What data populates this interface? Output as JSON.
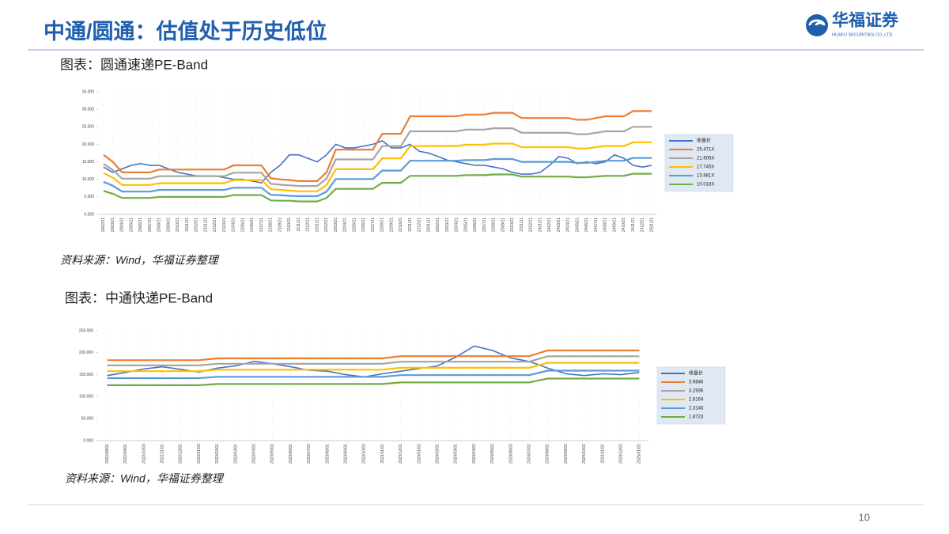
{
  "slide": {
    "title": "中通/圆通：估值处于历史低位",
    "logo_name": "华福证券",
    "logo_subtitle": "HUAFU SECURITIES CO.,LTD",
    "page_number": "10"
  },
  "chart_data": [
    {
      "type": "line",
      "title": "图表：圆通速递PE-Band",
      "source": "资料来源：Wind，华福证券整理",
      "categories": [
        "2002/21",
        "2003/21",
        "2004/21",
        "2005/21",
        "2006/21",
        "2007/21",
        "2008/21",
        "2009/21",
        "2010/21",
        "2011/21",
        "2012/21",
        "2101/21",
        "2102/21",
        "2103/21",
        "2104/21",
        "2105/21",
        "2106/21",
        "2107/21",
        "2108/21",
        "2109/21",
        "2110/21",
        "2111/21",
        "2112/21",
        "2201/21",
        "2202/21",
        "2203/21",
        "2204/21",
        "2205/21",
        "2206/21",
        "2207/21",
        "2208/21",
        "2209/21",
        "2210/21",
        "2211/21",
        "2212/21",
        "2301/21",
        "2302/21",
        "2303/21",
        "2304/21",
        "2305/21",
        "2306/21",
        "2307/21",
        "2308/21",
        "2309/21",
        "2310/21",
        "2311/21",
        "2312/21",
        "2401/21",
        "2402/21",
        "2403/21",
        "2404/21",
        "2405/21",
        "2406/21",
        "2407/21",
        "2408/21",
        "2409/21",
        "2410/21",
        "2411/21",
        "2412/21",
        "2501/21"
      ],
      "ylim": [
        0,
        35
      ],
      "yticks": [
        {
          "value": 0,
          "label": "0.000"
        },
        {
          "value": 5,
          "label": "5.000"
        },
        {
          "value": 10,
          "label": "10.000"
        },
        {
          "value": 15,
          "label": "15.000"
        },
        {
          "value": 20,
          "label": "20.000"
        },
        {
          "value": 25,
          "label": "25.000"
        },
        {
          "value": 30,
          "label": "30.000"
        },
        {
          "value": 35,
          "label": "35.000"
        }
      ],
      "grid": false,
      "series": [
        {
          "name": "收盘价",
          "color": "#4472c4",
          "values": [
            13.5,
            12,
            13,
            14,
            14.5,
            14,
            14,
            13,
            12,
            11.5,
            11,
            11,
            11,
            10.5,
            10,
            10,
            9.5,
            9,
            12,
            14,
            17,
            17,
            16,
            15,
            17,
            20,
            19,
            19,
            19.5,
            20,
            21,
            19,
            19,
            20,
            18,
            17.5,
            16.5,
            15.5,
            15,
            14.5,
            14,
            14,
            13.5,
            13,
            12,
            11.5,
            11.5,
            12,
            14,
            16.5,
            16,
            14.5,
            15,
            14.5,
            15,
            17,
            16,
            14,
            13.5,
            14
          ]
        },
        {
          "name": "25.471X",
          "color": "#ed7d31",
          "values": [
            17,
            15,
            12,
            12,
            12,
            12,
            12.8,
            12.8,
            12.8,
            12.8,
            12.8,
            12.8,
            12.8,
            12.8,
            14,
            14,
            14,
            14,
            10.3,
            10,
            9.8,
            9.5,
            9.5,
            9.5,
            12,
            18.5,
            18.5,
            18.5,
            18.5,
            18.5,
            23,
            23,
            23,
            28,
            28,
            28,
            28,
            28,
            28,
            28.5,
            28.5,
            28.5,
            29,
            29,
            29,
            27.5,
            27.5,
            27.5,
            27.5,
            27.5,
            27.5,
            27,
            27,
            27.5,
            28,
            28,
            28,
            29.5,
            29.5,
            29.5
          ]
        },
        {
          "name": "21.605X",
          "color": "#a5a5a5",
          "values": [
            14.4,
            12.7,
            10.2,
            10.2,
            10.2,
            10.2,
            10.9,
            10.9,
            10.9,
            10.9,
            10.9,
            10.9,
            10.9,
            10.9,
            11.9,
            11.9,
            11.9,
            11.9,
            8.7,
            8.5,
            8.3,
            8.1,
            8.1,
            8.1,
            10.2,
            15.7,
            15.7,
            15.7,
            15.7,
            15.7,
            19.5,
            19.5,
            19.5,
            23.7,
            23.7,
            23.7,
            23.7,
            23.7,
            23.7,
            24.2,
            24.2,
            24.2,
            24.6,
            24.6,
            24.6,
            23.3,
            23.3,
            23.3,
            23.3,
            23.3,
            23.3,
            22.9,
            22.9,
            23.3,
            23.7,
            23.7,
            23.7,
            25.0,
            25.0,
            25.0
          ]
        },
        {
          "name": "17.745X",
          "color": "#ffc000",
          "values": [
            11.8,
            10.5,
            8.4,
            8.4,
            8.4,
            8.4,
            8.9,
            8.9,
            8.9,
            8.9,
            8.9,
            8.9,
            8.9,
            8.9,
            9.8,
            9.8,
            9.8,
            9.8,
            7.2,
            7.0,
            6.8,
            6.6,
            6.6,
            6.6,
            8.4,
            12.9,
            12.9,
            12.9,
            12.9,
            12.9,
            16.0,
            16.0,
            16.0,
            19.5,
            19.5,
            19.5,
            19.5,
            19.5,
            19.5,
            19.9,
            19.9,
            19.9,
            20.2,
            20.2,
            20.2,
            19.2,
            19.2,
            19.2,
            19.2,
            19.2,
            19.2,
            18.8,
            18.8,
            19.2,
            19.5,
            19.5,
            19.5,
            20.6,
            20.6,
            20.6
          ]
        },
        {
          "name": "13.881X",
          "color": "#5b9bd5",
          "values": [
            9.3,
            8.2,
            6.5,
            6.5,
            6.5,
            6.5,
            7.0,
            7.0,
            7.0,
            7.0,
            7.0,
            7.0,
            7.0,
            7.0,
            7.6,
            7.6,
            7.6,
            7.6,
            5.6,
            5.5,
            5.3,
            5.2,
            5.2,
            5.2,
            6.5,
            10.1,
            10.1,
            10.1,
            10.1,
            10.1,
            12.5,
            12.5,
            12.5,
            15.3,
            15.3,
            15.3,
            15.3,
            15.3,
            15.3,
            15.5,
            15.5,
            15.5,
            15.8,
            15.8,
            15.8,
            15.0,
            15.0,
            15.0,
            15.0,
            15.0,
            15.0,
            14.7,
            14.7,
            15.0,
            15.3,
            15.3,
            15.3,
            16.1,
            16.1,
            16.1
          ]
        },
        {
          "name": "10.018X",
          "color": "#70ad47",
          "values": [
            6.7,
            5.9,
            4.7,
            4.7,
            4.7,
            4.7,
            5.0,
            5.0,
            5.0,
            5.0,
            5.0,
            5.0,
            5.0,
            5.0,
            5.5,
            5.5,
            5.5,
            5.5,
            4.0,
            3.9,
            3.9,
            3.7,
            3.7,
            3.7,
            4.7,
            7.3,
            7.3,
            7.3,
            7.3,
            7.3,
            9.0,
            9.0,
            9.0,
            11.0,
            11.0,
            11.0,
            11.0,
            11.0,
            11.0,
            11.2,
            11.2,
            11.2,
            11.4,
            11.4,
            11.4,
            10.8,
            10.8,
            10.8,
            10.8,
            10.8,
            10.8,
            10.6,
            10.6,
            10.8,
            11.0,
            11.0,
            11.0,
            11.6,
            11.6,
            11.6
          ]
        }
      ]
    },
    {
      "type": "line",
      "title": "图表：中通快递PE-Band",
      "source": "资料来源：Wind，华福证券整理",
      "categories": [
        "2022/08/01",
        "2022/09/01",
        "2022/10/03",
        "2022/11/01",
        "2022/12/01",
        "2023/01/03",
        "2023/02/01",
        "2023/03/01",
        "2023/04/03",
        "2023/05/02",
        "2023/06/01",
        "2023/07/03",
        "2023/08/01",
        "2023/09/01",
        "2023/10/03",
        "2023/11/01",
        "2023/12/01",
        "2024/01/02",
        "2024/02/01",
        "2024/03/01",
        "2024/04/02",
        "2024/05/02",
        "2024/06/03",
        "2024/07/02",
        "2024/08/01",
        "2024/09/02",
        "2024/10/02",
        "2024/11/01",
        "2024/12/02",
        "2025/01/02"
      ],
      "ylim": [
        0,
        250
      ],
      "yticks": [
        {
          "value": 0,
          "label": "0.000"
        },
        {
          "value": 50,
          "label": "50.000"
        },
        {
          "value": 100,
          "label": "100.000"
        },
        {
          "value": 150,
          "label": "150.000"
        },
        {
          "value": 200,
          "label": "200.000"
        },
        {
          "value": 250,
          "label": "250.000"
        }
      ],
      "grid": false,
      "series": [
        {
          "name": "收盘价",
          "color": "#4472c4",
          "values": [
            148,
            155,
            163,
            168,
            162,
            156,
            165,
            170,
            180,
            175,
            168,
            160,
            158,
            150,
            145,
            152,
            158,
            164,
            170,
            190,
            215,
            205,
            188,
            180,
            165,
            152,
            148,
            152,
            150,
            155
          ]
        },
        {
          "name": "3.9846",
          "color": "#ed7d31",
          "values": [
            183,
            183,
            183,
            183,
            183,
            183,
            187,
            187,
            187,
            187,
            187,
            187,
            187,
            187,
            187,
            187,
            192,
            192,
            192,
            192,
            192,
            192,
            192,
            192,
            205,
            205,
            205,
            205,
            205,
            205
          ]
        },
        {
          "name": "3.2936",
          "color": "#a5a5a5",
          "values": [
            171.1,
            171.1,
            171.1,
            171.1,
            171.1,
            171.1,
            174.8,
            174.8,
            174.8,
            174.8,
            174.8,
            174.8,
            174.8,
            174.8,
            174.8,
            174.8,
            179.5,
            179.5,
            179.5,
            179.5,
            179.5,
            179.5,
            179.5,
            179.5,
            191.7,
            191.7,
            191.7,
            191.7,
            191.7,
            191.7
          ]
        },
        {
          "name": "2.8164",
          "color": "#ffc000",
          "values": [
            157.9,
            157.9,
            157.9,
            157.9,
            157.9,
            157.9,
            161.4,
            161.4,
            161.4,
            161.4,
            161.4,
            161.4,
            161.4,
            161.4,
            161.4,
            161.4,
            165.7,
            165.7,
            165.7,
            165.7,
            165.7,
            165.7,
            165.7,
            165.7,
            176.9,
            176.9,
            176.9,
            176.9,
            176.9,
            176.9
          ]
        },
        {
          "name": "2.3146",
          "color": "#5b9bd5",
          "values": [
            142.0,
            142.0,
            142.0,
            142.0,
            142.0,
            142.0,
            145.1,
            145.1,
            145.1,
            145.1,
            145.1,
            145.1,
            145.1,
            145.1,
            145.1,
            145.1,
            149.0,
            149.0,
            149.0,
            149.0,
            149.0,
            149.0,
            149.0,
            149.0,
            159.1,
            159.1,
            159.1,
            159.1,
            159.1,
            159.1
          ]
        },
        {
          "name": "1.8723",
          "color": "#70ad47",
          "values": [
            126.1,
            126.1,
            126.1,
            126.1,
            126.1,
            126.1,
            128.8,
            128.8,
            128.8,
            128.8,
            128.8,
            128.8,
            128.8,
            128.8,
            128.8,
            128.8,
            132.3,
            132.3,
            132.3,
            132.3,
            132.3,
            132.3,
            132.3,
            132.3,
            141.2,
            141.2,
            141.2,
            141.2,
            141.2,
            141.2
          ]
        }
      ]
    }
  ]
}
